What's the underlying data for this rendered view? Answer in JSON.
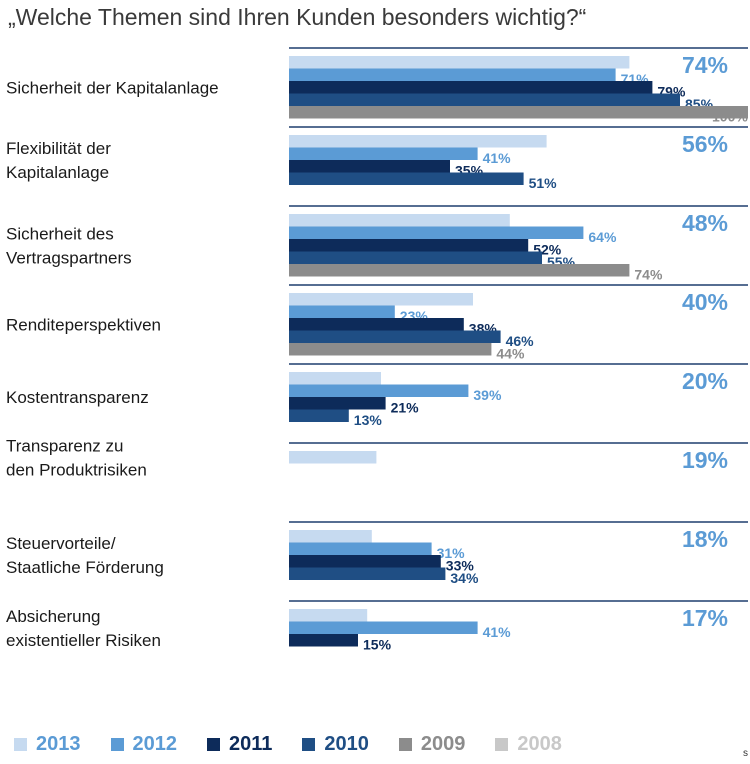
{
  "chart_data": {
    "type": "bar",
    "orientation": "horizontal",
    "title": "„Welche Themen sind Ihren Kunden besonders wichtig?“",
    "xlim": [
      0,
      100
    ],
    "unit": "%",
    "series_names": [
      "2013",
      "2012",
      "2011",
      "2010",
      "2009",
      "2008"
    ],
    "series_colors": {
      "2013": "#c6daf0",
      "2012": "#5b9bd5",
      "2011": "#0d2b5a",
      "2010": "#1f4e84",
      "2009": "#8c8c8c",
      "2008": "#c8c8c8"
    },
    "label_colors": {
      "2013": "#5b9bd5",
      "2012": "#5b9bd5",
      "2011": "#0d2b5a",
      "2010": "#1f4e84",
      "2009": "#8c8c8c",
      "2008": "#c8c8c8"
    },
    "categories": [
      {
        "label": "Sicherheit der Kapitalanlage",
        "total": "74%",
        "bars": [
          {
            "series": "2013",
            "value": 74,
            "label": ""
          },
          {
            "series": "2012",
            "value": 71,
            "label": "71%"
          },
          {
            "series": "2011",
            "value": 79,
            "label": "79%"
          },
          {
            "series": "2010",
            "value": 85,
            "label": "85%"
          },
          {
            "series": "2009",
            "value": 100,
            "label": "100%"
          }
        ]
      },
      {
        "label": "Flexibilität der Kapitalanlage",
        "total": "56%",
        "bars": [
          {
            "series": "2013",
            "value": 56,
            "label": ""
          },
          {
            "series": "2012",
            "value": 41,
            "label": "41%"
          },
          {
            "series": "2011",
            "value": 35,
            "label": "35%"
          },
          {
            "series": "2010",
            "value": 51,
            "label": "51%"
          }
        ]
      },
      {
        "label": "Sicherheit des Vertragspartners",
        "total": "48%",
        "bars": [
          {
            "series": "2013",
            "value": 48,
            "label": ""
          },
          {
            "series": "2012",
            "value": 64,
            "label": "64%"
          },
          {
            "series": "2011",
            "value": 52,
            "label": "52%"
          },
          {
            "series": "2010",
            "value": 55,
            "label": "55%"
          },
          {
            "series": "2009",
            "value": 74,
            "label": "74%"
          }
        ]
      },
      {
        "label": "Renditeperspektiven",
        "total": "40%",
        "bars": [
          {
            "series": "2013",
            "value": 40,
            "label": ""
          },
          {
            "series": "2012",
            "value": 23,
            "label": "23%"
          },
          {
            "series": "2011",
            "value": 38,
            "label": "38%"
          },
          {
            "series": "2010",
            "value": 46,
            "label": "46%"
          },
          {
            "series": "2009",
            "value": 44,
            "label": "44%"
          }
        ]
      },
      {
        "label": "Kostentransparenz",
        "total": "20%",
        "bars": [
          {
            "series": "2013",
            "value": 20,
            "label": ""
          },
          {
            "series": "2012",
            "value": 39,
            "label": "39%"
          },
          {
            "series": "2011",
            "value": 21,
            "label": "21%"
          },
          {
            "series": "2010",
            "value": 13,
            "label": "13%"
          }
        ]
      },
      {
        "label": "Transparenz zu den Produktrisiken",
        "total": "19%",
        "bars": [
          {
            "series": "2013",
            "value": 19,
            "label": ""
          }
        ]
      },
      {
        "label": "Steuervorteile/ Staatliche Förderung",
        "total": "18%",
        "bars": [
          {
            "series": "2013",
            "value": 18,
            "label": ""
          },
          {
            "series": "2012",
            "value": 31,
            "label": "31%"
          },
          {
            "series": "2011",
            "value": 33,
            "label": "33%"
          },
          {
            "series": "2010",
            "value": 34,
            "label": "34%"
          }
        ]
      },
      {
        "label": "Absicherung existentieller Risiken",
        "total": "17%",
        "bars": [
          {
            "series": "2013",
            "value": 17,
            "label": ""
          },
          {
            "series": "2012",
            "value": 41,
            "label": "41%"
          },
          {
            "series": "2011",
            "value": 15,
            "label": "15%"
          }
        ]
      }
    ],
    "legend": [
      {
        "label": "2013"
      },
      {
        "label": "2012"
      },
      {
        "label": "2011"
      },
      {
        "label": "2010"
      },
      {
        "label": "2009"
      },
      {
        "label": "2008"
      }
    ]
  },
  "stray_text": "s"
}
